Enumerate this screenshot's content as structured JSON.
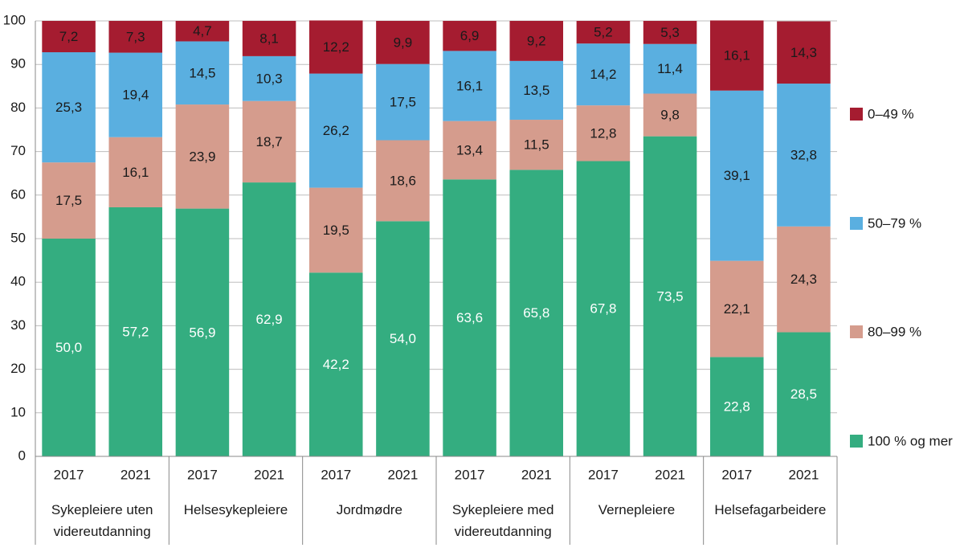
{
  "chart_data": {
    "type": "stacked_bar",
    "categories": [
      "2017",
      "2021",
      "2017",
      "2021",
      "2017",
      "2021",
      "2017",
      "2021",
      "2017",
      "2021",
      "2017",
      "2021"
    ],
    "group_labels": [
      "Sykepleiere uten videreutdanning",
      "Helsesykepleiere",
      "Jordmødre",
      "Sykepleiere med videreutdanning",
      "Vernepleiere",
      "Helsefagarbeidere"
    ],
    "series": [
      {
        "name": "100 % og mer",
        "color": "#34ad80",
        "values": [
          50.0,
          57.2,
          56.9,
          62.9,
          42.2,
          54.0,
          63.6,
          65.8,
          67.8,
          73.5,
          22.8,
          28.5
        ],
        "value_labels": [
          "50,0",
          "57,2",
          "56,9",
          "62,9",
          "42,2",
          "54,0",
          "63,6",
          "65,8",
          "67,8",
          "73,5",
          "22,8",
          "28,5"
        ]
      },
      {
        "name": "80–99 %",
        "color": "#d59c8d",
        "values": [
          17.5,
          16.1,
          23.9,
          18.7,
          19.5,
          18.6,
          13.4,
          11.5,
          12.8,
          9.8,
          22.1,
          24.3
        ],
        "value_labels": [
          "17,5",
          "16,1",
          "23,9",
          "18,7",
          "19,5",
          "18,6",
          "13,4",
          "11,5",
          "12,8",
          "9,8",
          "22,1",
          "24,3"
        ]
      },
      {
        "name": "50–79 %",
        "color": "#5aafe0",
        "values": [
          25.3,
          19.4,
          14.5,
          10.3,
          26.2,
          17.5,
          16.1,
          13.5,
          14.2,
          11.4,
          39.1,
          32.8
        ],
        "value_labels": [
          "25,3",
          "19,4",
          "14,5",
          "10,3",
          "26,2",
          "17,5",
          "16,1",
          "13,5",
          "14,2",
          "11,4",
          "39,1",
          "32,8"
        ]
      },
      {
        "name": "0–49 %",
        "color": "#a51c30",
        "values": [
          7.2,
          7.3,
          4.7,
          8.1,
          12.2,
          9.9,
          6.9,
          9.2,
          5.2,
          5.3,
          16.1,
          14.3
        ],
        "value_labels": [
          "7,2",
          "7,3",
          "4,7",
          "8,1",
          "12,2",
          "9,9",
          "6,9",
          "9,2",
          "5,2",
          "5,3",
          "16,1",
          "14,3"
        ]
      }
    ],
    "ylim": [
      0,
      100
    ],
    "yticks": [
      0,
      10,
      20,
      30,
      40,
      50,
      60,
      70,
      80,
      90,
      100
    ],
    "grid": true,
    "legend": "right"
  }
}
